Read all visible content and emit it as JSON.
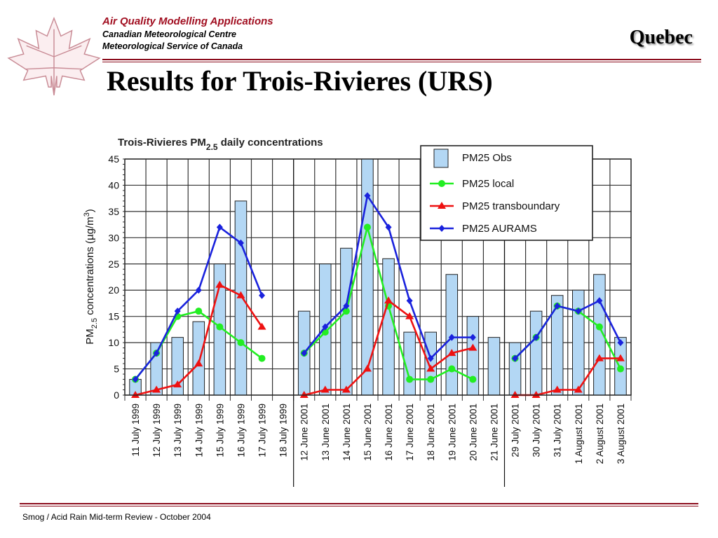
{
  "header": {
    "org_line1": "Air Quality Modelling Applications",
    "org_line2": "Canadian Meteorological Centre",
    "org_line3": "Meteorological Service of Canada",
    "region": "Quebec",
    "logo_icon": "maple-leaf-icon"
  },
  "slide": {
    "title": "Results for Trois-Rivieres (URS)"
  },
  "footer": {
    "text": "Smog / Acid Rain Mid-term Review - October 2004"
  },
  "colors": {
    "accent": "#8b0c1c",
    "obs_bar": "#b3d7f4",
    "local": "#22ee22",
    "transboundary": "#ee1111",
    "aurams": "#1a22dd"
  },
  "chart_data": {
    "type": "bar",
    "title_prefix": "Trois-Rivieres PM",
    "title_sub": "2.5",
    "title_suffix": " daily concentrations",
    "ylabel_prefix": "PM",
    "ylabel_sub": "2.5",
    "ylabel_main": " concentrations (µg/m",
    "ylabel_sup": "3",
    "ylabel_end": ")",
    "ylim": [
      0,
      45
    ],
    "yticks": [
      0,
      5,
      10,
      15,
      20,
      25,
      30,
      35,
      40,
      45
    ],
    "grid": true,
    "legend_position": "top-right",
    "categories": [
      "11 July 1999",
      "12 July 1999",
      "13 July 1999",
      "14 July 1999",
      "15 July 1999",
      "16 July 1999",
      "17 July 1999",
      "18 July 1999",
      "12 June 2001",
      "13 June 2001",
      "14 June 2001",
      "15 June 2001",
      "16 June 2001",
      "17 June 2001",
      "18 June 2001",
      "19 June 2001",
      "20 June 2001",
      "21 June 2001",
      "29 July 2001",
      "30 July 2001",
      "31 July 2001",
      "1 August 2001",
      "2 August 2001",
      "3 August 2001"
    ],
    "segments": [
      {
        "start": 0,
        "end": 7
      },
      {
        "start": 8,
        "end": 17
      },
      {
        "start": 18,
        "end": 23
      }
    ],
    "series": [
      {
        "name": "PM25 Obs",
        "kind": "bar",
        "values": [
          3,
          10,
          11,
          14,
          25,
          37,
          null,
          null,
          16,
          25,
          28,
          45,
          26,
          12,
          12,
          23,
          15,
          11,
          10,
          16,
          19,
          20,
          23,
          11
        ]
      },
      {
        "name": "PM25 local",
        "kind": "line",
        "marker": "circle",
        "values": [
          3,
          8,
          15,
          16,
          13,
          10,
          7,
          null,
          8,
          12,
          16,
          32,
          17,
          3,
          3,
          5,
          3,
          null,
          7,
          11,
          17,
          16,
          13,
          5
        ]
      },
      {
        "name": "PM25 transboundary",
        "kind": "line",
        "marker": "triangle",
        "values": [
          0,
          1,
          2,
          6,
          21,
          19,
          13,
          null,
          0,
          1,
          1,
          5,
          18,
          15,
          5,
          8,
          9,
          null,
          0,
          0,
          1,
          1,
          7,
          7
        ]
      },
      {
        "name": "PM25 AURAMS",
        "kind": "line",
        "marker": "diamond",
        "values": [
          3,
          8,
          16,
          20,
          32,
          29,
          19,
          null,
          8,
          13,
          17,
          38,
          32,
          18,
          7,
          11,
          11,
          null,
          7,
          11,
          17,
          16,
          18,
          10
        ]
      }
    ]
  }
}
